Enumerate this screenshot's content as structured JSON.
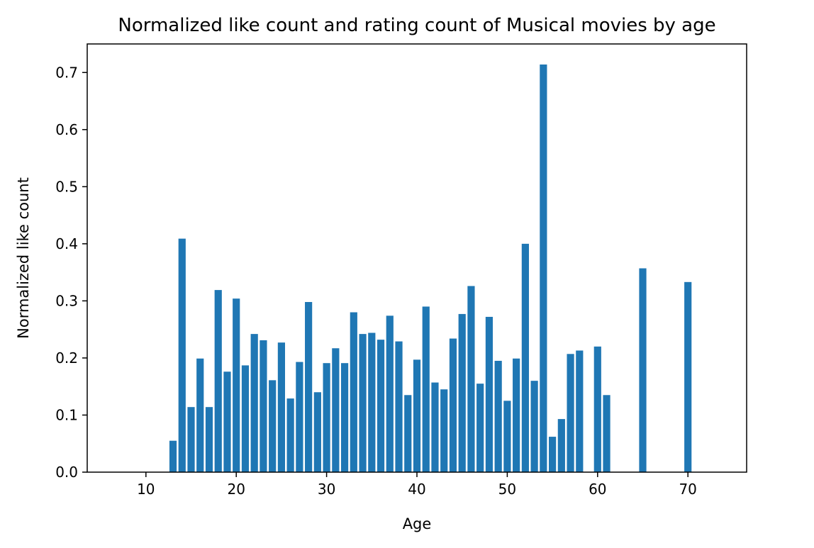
{
  "chart_data": {
    "type": "bar",
    "title": "Normalized like count and rating count of Musical movies by age",
    "xlabel": "Age",
    "ylabel": "Normalized like count",
    "x": [
      13,
      14,
      15,
      16,
      17,
      18,
      19,
      20,
      21,
      22,
      23,
      24,
      25,
      26,
      27,
      28,
      29,
      30,
      31,
      32,
      33,
      34,
      35,
      36,
      37,
      38,
      39,
      40,
      41,
      42,
      43,
      44,
      45,
      46,
      47,
      48,
      49,
      50,
      51,
      52,
      53,
      54,
      55,
      56,
      57,
      58,
      60,
      61,
      65,
      70
    ],
    "values": [
      0.055,
      0.409,
      0.114,
      0.199,
      0.114,
      0.319,
      0.176,
      0.304,
      0.187,
      0.242,
      0.231,
      0.161,
      0.227,
      0.129,
      0.193,
      0.298,
      0.14,
      0.191,
      0.217,
      0.191,
      0.28,
      0.242,
      0.244,
      0.232,
      0.274,
      0.229,
      0.135,
      0.197,
      0.29,
      0.157,
      0.145,
      0.234,
      0.277,
      0.326,
      0.155,
      0.272,
      0.195,
      0.125,
      0.199,
      0.4,
      0.16,
      0.714,
      0.062,
      0.093,
      0.207,
      0.213,
      0.22,
      0.135,
      0.357,
      0.333
    ],
    "xlim": [
      3.5,
      76.5
    ],
    "ylim": [
      0,
      0.75
    ],
    "xticks": [
      10,
      20,
      30,
      40,
      50,
      60,
      70
    ],
    "yticks": [
      0.0,
      0.1,
      0.2,
      0.3,
      0.4,
      0.5,
      0.6,
      0.7
    ],
    "xtick_labels": [
      "10",
      "20",
      "30",
      "40",
      "50",
      "60",
      "70"
    ],
    "ytick_labels": [
      "0.0",
      "0.1",
      "0.2",
      "0.3",
      "0.4",
      "0.5",
      "0.6",
      "0.7"
    ],
    "bar_color": "#1f77b4",
    "grid": false,
    "legend": "none"
  }
}
